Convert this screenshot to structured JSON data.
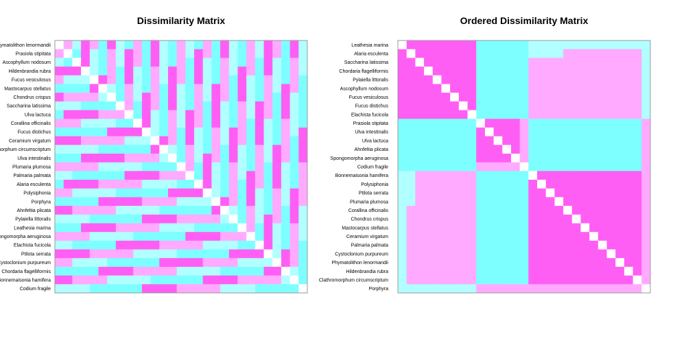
{
  "chart_data": [
    {
      "type": "heatmap",
      "title": "Dissimilarity Matrix",
      "rows": [
        "Phymatolithon lenormandii",
        "Prasiola stipitata",
        "Ascophyllum nodosum",
        "Hildenbrandia rubra",
        "Fucus vesiculosus",
        "Mastocarpus stellatus",
        "Chondrus crispus",
        "Saccharina latissima",
        "Ulva lactuca",
        "Corallina officinalis",
        "Fucus distichus",
        "Ceramium virgatum",
        "Clathromorphum circumscriptum",
        "Ulva intestinalis",
        "Plumaria plumosa",
        "Palmaria palmata",
        "Alaria esculenta",
        "Polysiphonia",
        "Porphyra",
        "Ahnfeltia plicata",
        "Pylaiella littoralis",
        "Leathesia marina",
        "Spongomorpha aeruginosa",
        "Elachista fucicola",
        "Ptilota serrata",
        "Cystoclonium purpureum",
        "Chordaria flagelliformis",
        "Bonnemaisonia hamifera",
        "Codium fragile"
      ],
      "levels": [
        "#ffffff",
        "#ff5ef5",
        "#ffaaff",
        "#b2ffff",
        "#7effff"
      ],
      "grid": false,
      "legend": "none"
    },
    {
      "type": "heatmap",
      "title": "Ordered Dissimilarity Matrix",
      "rows": [
        "Leathesia marina",
        "Alaria esculenta",
        "Saccharina latissima",
        "Chordaria flagelliformis",
        "Pylaiella littoralis",
        "Ascophyllum nodosum",
        "Fucus vesiculosus",
        "Fucus distichus",
        "Elachista fucicola",
        "Prasiola stipitata",
        "Ulva intestinalis",
        "Ulva lactuca",
        "Ahnfeltia plicata",
        "Spongomorpha aeruginosa",
        "Codium fragile",
        "Bonnemaisonia hamifera",
        "Polysiphonia",
        "Ptilota serrata",
        "Plumaria plumosa",
        "Corallina officinalis",
        "Chondrus crispus",
        "Mastocarpus stellatus",
        "Ceramium virgatum",
        "Palmaria palmata",
        "Cystoclonium purpureum",
        "Phymatolithon lenormandii",
        "Hildenbrandia rubra",
        "Clathromorphum circumscriptum",
        "Porphyra"
      ],
      "levels": [
        "#ffffff",
        "#ff5ef5",
        "#ffaaff",
        "#b2ffff",
        "#7effff"
      ],
      "grid": false,
      "legend": "none"
    }
  ]
}
